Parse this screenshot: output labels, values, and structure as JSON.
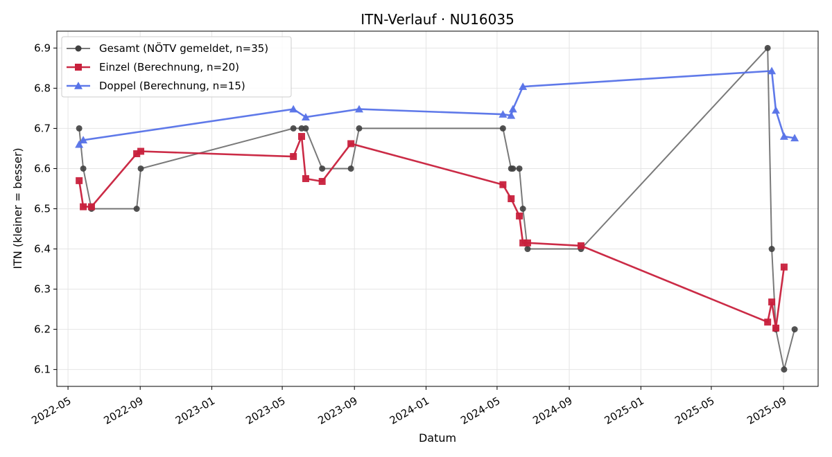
{
  "chart_data": {
    "type": "line",
    "title": "ITN-Verlauf · NU16035",
    "xlabel": "Datum",
    "ylabel": "ITN  (kleiner = besser)",
    "xlim": [
      "2022-04-12",
      "2025-10-30"
    ],
    "ylim": [
      6.058,
      6.942
    ],
    "x_ticks": [
      "2022-05",
      "2022-09",
      "2023-01",
      "2023-05",
      "2023-09",
      "2024-01",
      "2024-05",
      "2024-09",
      "2025-01",
      "2025-05",
      "2025-09"
    ],
    "y_ticks": [
      "6.1",
      "6.2",
      "6.3",
      "6.4",
      "6.5",
      "6.6",
      "6.7",
      "6.8",
      "6.9"
    ],
    "grid": true,
    "legend_position": "top-left",
    "series": [
      {
        "name": "Gesamt (NÖTV gemeldet, n=35)",
        "color": "#404040",
        "marker": "circle",
        "points": [
          [
            "2022-05-20",
            6.7
          ],
          [
            "2022-05-27",
            6.6
          ],
          [
            "2022-06-10",
            6.5
          ],
          [
            "2022-08-26",
            6.5
          ],
          [
            "2022-09-02",
            6.6
          ],
          [
            "2023-05-20",
            6.7
          ],
          [
            "2023-06-03",
            6.7
          ],
          [
            "2023-06-10",
            6.7
          ],
          [
            "2023-07-08",
            6.6
          ],
          [
            "2023-08-26",
            6.6
          ],
          [
            "2023-09-09",
            6.7
          ],
          [
            "2024-05-11",
            6.7
          ],
          [
            "2024-05-25",
            6.6
          ],
          [
            "2024-05-28",
            6.6
          ],
          [
            "2024-06-08",
            6.6
          ],
          [
            "2024-06-14",
            6.5
          ],
          [
            "2024-06-22",
            6.4
          ],
          [
            "2024-09-21",
            6.4
          ],
          [
            "2025-08-05",
            6.9
          ],
          [
            "2025-08-12",
            6.4
          ],
          [
            "2025-08-19",
            6.2
          ],
          [
            "2025-09-02",
            6.1
          ],
          [
            "2025-09-20",
            6.2
          ]
        ]
      },
      {
        "name": "Einzel (Berechnung, n=20)",
        "color": "#c8203c",
        "marker": "square",
        "points": [
          [
            "2022-05-20",
            6.57
          ],
          [
            "2022-05-27",
            6.505
          ],
          [
            "2022-06-10",
            6.505
          ],
          [
            "2022-08-26",
            6.637
          ],
          [
            "2022-09-02",
            6.643
          ],
          [
            "2023-05-20",
            6.63
          ],
          [
            "2023-06-03",
            6.68
          ],
          [
            "2023-06-10",
            6.575
          ],
          [
            "2023-07-08",
            6.568
          ],
          [
            "2023-08-26",
            6.662
          ],
          [
            "2024-05-11",
            6.56
          ],
          [
            "2024-05-25",
            6.525
          ],
          [
            "2024-06-08",
            6.482
          ],
          [
            "2024-06-14",
            6.415
          ],
          [
            "2024-06-22",
            6.415
          ],
          [
            "2024-09-21",
            6.408
          ],
          [
            "2025-08-05",
            6.218
          ],
          [
            "2025-08-12",
            6.268
          ],
          [
            "2025-08-19",
            6.203
          ],
          [
            "2025-09-02",
            6.355
          ]
        ]
      },
      {
        "name": "Doppel (Berechnung, n=15)",
        "color": "#5672e8",
        "marker": "triangle",
        "points": [
          [
            "2022-05-20",
            6.66
          ],
          [
            "2022-05-27",
            6.671
          ],
          [
            "2023-05-20",
            6.748
          ],
          [
            "2023-06-10",
            6.728
          ],
          [
            "2023-09-09",
            6.748
          ],
          [
            "2024-05-11",
            6.735
          ],
          [
            "2024-05-25",
            6.732
          ],
          [
            "2024-05-28",
            6.748
          ],
          [
            "2024-06-14",
            6.804
          ],
          [
            "2025-08-12",
            6.843
          ],
          [
            "2025-08-19",
            6.745
          ],
          [
            "2025-09-02",
            6.68
          ],
          [
            "2025-09-20",
            6.676
          ]
        ]
      }
    ]
  }
}
